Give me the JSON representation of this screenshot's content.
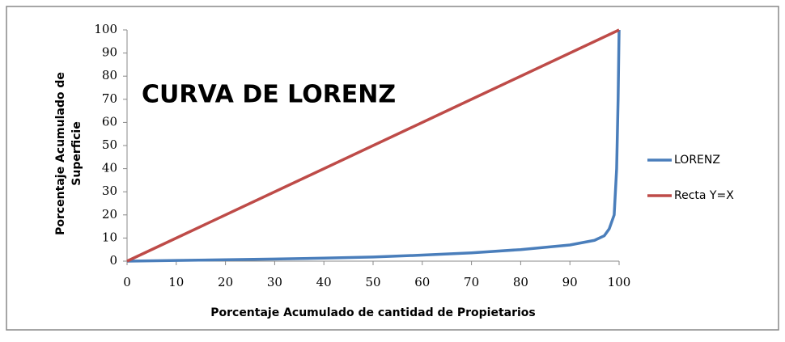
{
  "chart_data": {
    "type": "line",
    "title": "CURVA DE LORENZ",
    "x_label": "Porcentaje Acumulado de cantidad de Propietarios",
    "y_label": "Porcentaje Acumulado de Superficie",
    "xlim": [
      0,
      100
    ],
    "xticks": [
      0,
      10,
      20,
      30,
      40,
      50,
      60,
      70,
      80,
      90,
      100
    ],
    "ylim": [
      0,
      100
    ],
    "yticks": [
      0,
      10,
      20,
      30,
      40,
      50,
      60,
      70,
      80,
      90,
      100
    ],
    "grid": false,
    "legend": "right",
    "series": [
      {
        "name": "LORENZ",
        "color": "#4a7ebb",
        "x": [
          0,
          10,
          20,
          30,
          40,
          50,
          60,
          70,
          80,
          90,
          95,
          97,
          98,
          99,
          99.5,
          99.8,
          100
        ],
        "values": [
          0,
          0.3,
          0.6,
          0.9,
          1.3,
          1.8,
          2.6,
          3.6,
          5,
          7,
          9,
          11,
          14,
          20,
          40,
          70,
          100
        ]
      },
      {
        "name": "Recta Y=X",
        "color": "#be4b48",
        "x": [
          0,
          100
        ],
        "values": [
          0,
          100
        ]
      }
    ]
  }
}
